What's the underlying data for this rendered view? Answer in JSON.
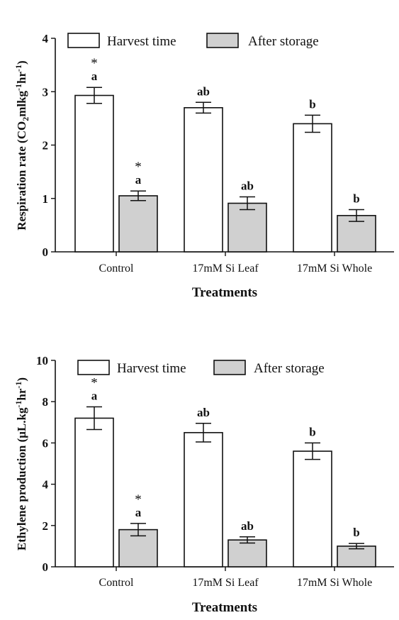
{
  "chart_data": [
    {
      "type": "bar",
      "categories": [
        "Control",
        "17mM Si Leaf",
        "17mM Si Whole"
      ],
      "series": [
        {
          "name": "Harvest time",
          "values": [
            2.93,
            2.7,
            2.4
          ],
          "errors": [
            0.15,
            0.1,
            0.16
          ],
          "sig": [
            "a",
            "ab",
            "b"
          ],
          "star": [
            true,
            false,
            false
          ],
          "color": "#ffffff"
        },
        {
          "name": "After storage",
          "values": [
            1.05,
            0.91,
            0.68
          ],
          "errors": [
            0.09,
            0.12,
            0.11
          ],
          "sig": [
            "a",
            "ab",
            "b"
          ],
          "star": [
            true,
            false,
            false
          ],
          "color": "#d0d0d0"
        }
      ],
      "xlabel": "Treatments",
      "ylabel_parts": [
        "Respiration rate (CO",
        "2",
        "mlkg",
        "-1",
        "hr",
        "-1",
        ")"
      ],
      "ylim": [
        0,
        4
      ],
      "yticks": [
        0,
        1,
        2,
        3,
        4
      ],
      "legend_position": "top"
    },
    {
      "type": "bar",
      "categories": [
        "Control",
        "17mM Si Leaf",
        "17mM Si Whole"
      ],
      "series": [
        {
          "name": "Harvest time",
          "values": [
            7.2,
            6.5,
            5.6
          ],
          "errors": [
            0.55,
            0.45,
            0.4
          ],
          "sig": [
            "a",
            "ab",
            "b"
          ],
          "star": [
            true,
            false,
            false
          ],
          "color": "#ffffff"
        },
        {
          "name": "After storage",
          "values": [
            1.8,
            1.3,
            1.0
          ],
          "errors": [
            0.3,
            0.15,
            0.13
          ],
          "sig": [
            "a",
            "ab",
            "b"
          ],
          "star": [
            true,
            false,
            false
          ],
          "color": "#d0d0d0"
        }
      ],
      "xlabel": "Treatments",
      "ylabel_parts": [
        "Ethylene production (μL.kg",
        "-1",
        "hr",
        "-1",
        ")"
      ],
      "ylim": [
        0,
        10
      ],
      "yticks": [
        0,
        2,
        4,
        6,
        8,
        10
      ],
      "legend_position": "top"
    }
  ]
}
